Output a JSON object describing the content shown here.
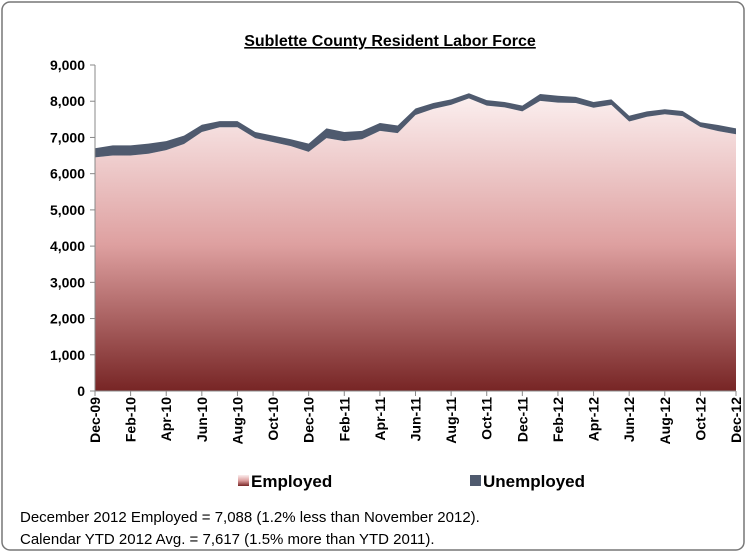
{
  "chart_data": {
    "type": "stacked_area",
    "title": "Sublette County Resident Labor Force",
    "categories": [
      "Dec-09",
      null,
      "Feb-10",
      null,
      "Apr-10",
      null,
      "Jun-10",
      null,
      "Aug-10",
      null,
      "Oct-10",
      null,
      "Dec-10",
      null,
      "Feb-11",
      null,
      "Apr-11",
      null,
      "Jun-11",
      null,
      "Aug-11",
      null,
      "Oct-11",
      null,
      "Dec-11",
      null,
      "Feb-12",
      null,
      "Apr-12",
      null,
      "Jun-12",
      null,
      "Aug-12",
      null,
      "Oct-12",
      null,
      "Dec-12"
    ],
    "series": [
      {
        "name": "Employed",
        "color": "#7a2a2a",
        "values": [
          6450,
          6500,
          6500,
          6550,
          6650,
          6820,
          7150,
          7280,
          7280,
          6980,
          6870,
          6760,
          6600,
          6980,
          6900,
          6950,
          7180,
          7120,
          7620,
          7790,
          7900,
          8080,
          7880,
          7830,
          7720,
          8010,
          7960,
          7950,
          7820,
          7900,
          7440,
          7570,
          7640,
          7590,
          7290,
          7174,
          7088
        ]
      },
      {
        "name": "Unemployed",
        "color": "#4f5a6e",
        "values": [
          250,
          280,
          280,
          280,
          250,
          230,
          200,
          170,
          170,
          170,
          180,
          190,
          230,
          270,
          250,
          230,
          220,
          210,
          180,
          160,
          150,
          140,
          150,
          150,
          160,
          190,
          190,
          170,
          160,
          150,
          160,
          150,
          140,
          140,
          130,
          170,
          162
        ]
      }
    ],
    "ylim": [
      0,
      9000
    ],
    "yticks": [
      0,
      {
        "value": 1000,
        "label": "1,000"
      },
      {
        "value": 2000,
        "label": "2,000"
      },
      {
        "value": 3000,
        "label": "3,000"
      },
      {
        "value": 4000,
        "label": "4,000"
      },
      {
        "value": 5000,
        "label": "5,000"
      },
      {
        "value": 6000,
        "label": "6,000"
      },
      {
        "value": 7000,
        "label": "7,000"
      },
      {
        "value": 8000,
        "label": "8,000"
      },
      {
        "value": 9000,
        "label": "9,000"
      }
    ],
    "legend": "bottom",
    "annotations": [
      "December 2012 Employed = 7,088 (1.2% less than November 2012).",
      "Calendar YTD 2012 Avg. = 7,617 (1.5% more than YTD 2011)."
    ]
  }
}
